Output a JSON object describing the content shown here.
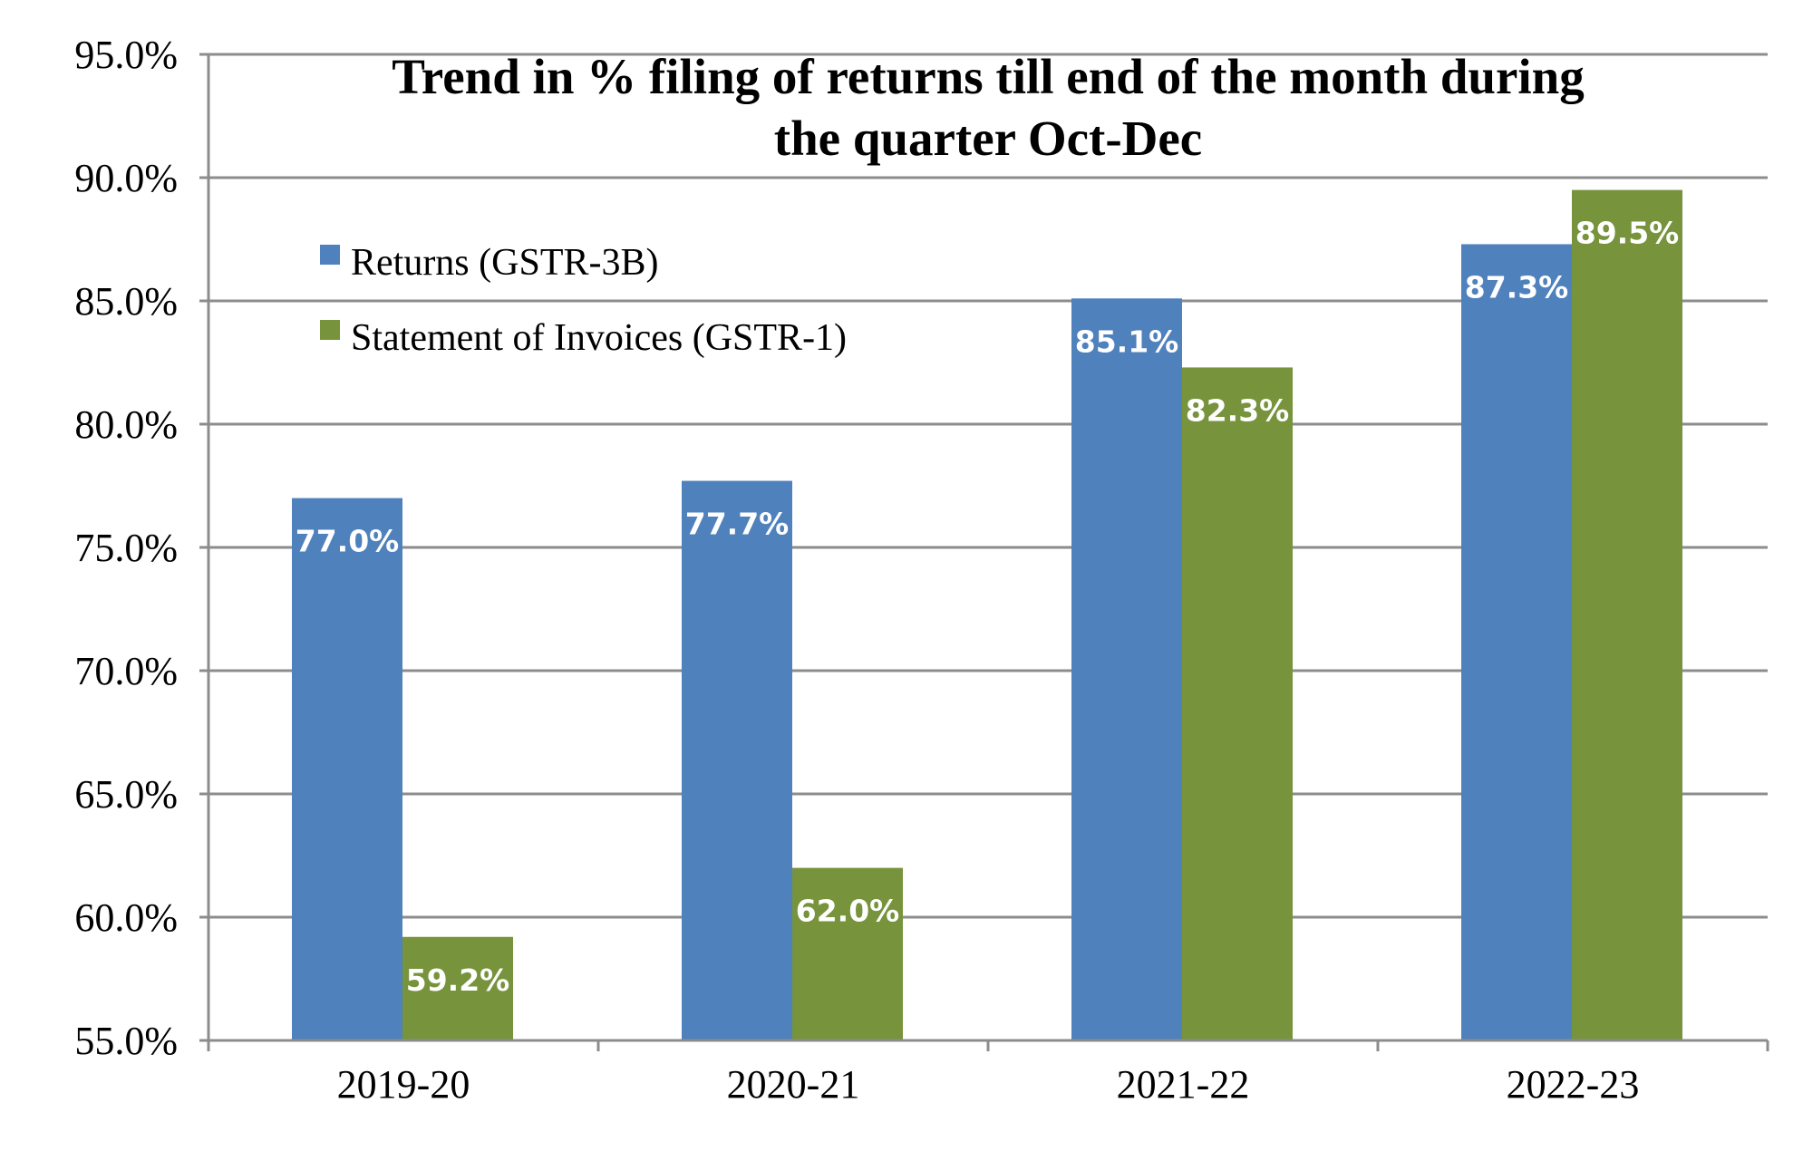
{
  "chart_data": {
    "type": "bar",
    "title_lines": [
      "Trend in % filing of returns till end of the month during",
      "the quarter Oct-Dec"
    ],
    "categories": [
      "2019-20",
      "2020-21",
      "2021-22",
      "2022-23"
    ],
    "series": [
      {
        "name": "Returns (GSTR-3B)",
        "color": "#4f81bd",
        "values": [
          77.0,
          77.7,
          85.1,
          87.3
        ],
        "labels": [
          "77.0%",
          "77.7%",
          "85.1%",
          "87.3%"
        ]
      },
      {
        "name": "Statement of Invoices (GSTR-1)",
        "color": "#77933c",
        "values": [
          59.2,
          62.0,
          82.3,
          89.5
        ],
        "labels": [
          "59.2%",
          "62.0%",
          "82.3%",
          "89.5%"
        ]
      }
    ],
    "ylim": [
      55.0,
      95.0
    ],
    "y_ticks": [
      55.0,
      60.0,
      65.0,
      70.0,
      75.0,
      80.0,
      85.0,
      90.0,
      95.0
    ],
    "y_tick_labels": [
      "55.0%",
      "60.0%",
      "65.0%",
      "70.0%",
      "75.0%",
      "80.0%",
      "85.0%",
      "90.0%",
      "95.0%"
    ],
    "grid": true,
    "legend_position": "top-left",
    "xlabel": "",
    "ylabel": ""
  }
}
